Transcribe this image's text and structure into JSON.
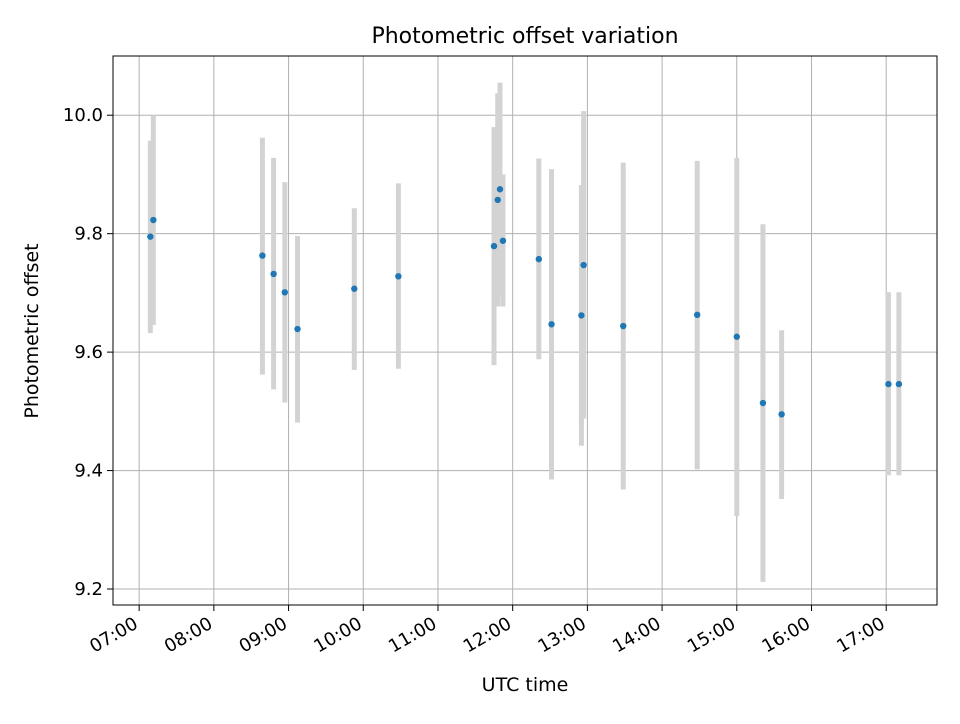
{
  "chart_data": {
    "type": "scatter",
    "title": "Photometric offset variation",
    "xlabel": "UTC time",
    "ylabel": "Photometric offset",
    "x_unit": "hour of day (UTC)",
    "xlim": [
      6.65,
      17.68
    ],
    "ylim": [
      9.173,
      10.1
    ],
    "x_ticks": [
      {
        "value": 7,
        "label": "07:00"
      },
      {
        "value": 8,
        "label": "08:00"
      },
      {
        "value": 9,
        "label": "09:00"
      },
      {
        "value": 10,
        "label": "10:00"
      },
      {
        "value": 11,
        "label": "11:00"
      },
      {
        "value": 12,
        "label": "12:00"
      },
      {
        "value": 13,
        "label": "13:00"
      },
      {
        "value": 14,
        "label": "14:00"
      },
      {
        "value": 15,
        "label": "15:00"
      },
      {
        "value": 16,
        "label": "16:00"
      },
      {
        "value": 17,
        "label": "17:00"
      }
    ],
    "y_ticks": [
      {
        "value": 9.2,
        "label": "9.2"
      },
      {
        "value": 9.4,
        "label": "9.4"
      },
      {
        "value": 9.6,
        "label": "9.6"
      },
      {
        "value": 9.8,
        "label": "9.8"
      },
      {
        "value": 10.0,
        "label": "10.0"
      }
    ],
    "grid": true,
    "marker_color": "#1f77b4",
    "errorbar_color": "#d3d3d3",
    "points": [
      {
        "x": 7.15,
        "y": 9.795,
        "ylow": 9.632,
        "yhigh": 9.957
      },
      {
        "x": 7.19,
        "y": 9.823,
        "ylow": 9.646,
        "yhigh": 10.0
      },
      {
        "x": 8.65,
        "y": 9.763,
        "ylow": 9.562,
        "yhigh": 9.962
      },
      {
        "x": 8.8,
        "y": 9.732,
        "ylow": 9.537,
        "yhigh": 9.928
      },
      {
        "x": 8.95,
        "y": 9.701,
        "ylow": 9.515,
        "yhigh": 9.887
      },
      {
        "x": 9.12,
        "y": 9.639,
        "ylow": 9.481,
        "yhigh": 9.796
      },
      {
        "x": 9.88,
        "y": 9.707,
        "ylow": 9.57,
        "yhigh": 9.843
      },
      {
        "x": 10.47,
        "y": 9.728,
        "ylow": 9.572,
        "yhigh": 9.885
      },
      {
        "x": 11.75,
        "y": 9.779,
        "ylow": 9.578,
        "yhigh": 9.98
      },
      {
        "x": 11.8,
        "y": 9.857,
        "ylow": 9.677,
        "yhigh": 10.037
      },
      {
        "x": 11.83,
        "y": 9.875,
        "ylow": 9.695,
        "yhigh": 10.055
      },
      {
        "x": 11.87,
        "y": 9.788,
        "ylow": 9.677,
        "yhigh": 9.9
      },
      {
        "x": 12.35,
        "y": 9.757,
        "ylow": 9.588,
        "yhigh": 9.927
      },
      {
        "x": 12.52,
        "y": 9.647,
        "ylow": 9.385,
        "yhigh": 9.909
      },
      {
        "x": 12.92,
        "y": 9.662,
        "ylow": 9.442,
        "yhigh": 9.882
      },
      {
        "x": 12.95,
        "y": 9.747,
        "ylow": 9.488,
        "yhigh": 10.007
      },
      {
        "x": 13.48,
        "y": 9.644,
        "ylow": 9.368,
        "yhigh": 9.92
      },
      {
        "x": 14.47,
        "y": 9.663,
        "ylow": 9.402,
        "yhigh": 9.923
      },
      {
        "x": 15.0,
        "y": 9.626,
        "ylow": 9.323,
        "yhigh": 9.928
      },
      {
        "x": 15.35,
        "y": 9.514,
        "ylow": 9.212,
        "yhigh": 9.816
      },
      {
        "x": 15.6,
        "y": 9.495,
        "ylow": 9.352,
        "yhigh": 9.637
      },
      {
        "x": 17.03,
        "y": 9.546,
        "ylow": 9.392,
        "yhigh": 9.701
      },
      {
        "x": 17.17,
        "y": 9.546,
        "ylow": 9.392,
        "yhigh": 9.701
      }
    ]
  }
}
